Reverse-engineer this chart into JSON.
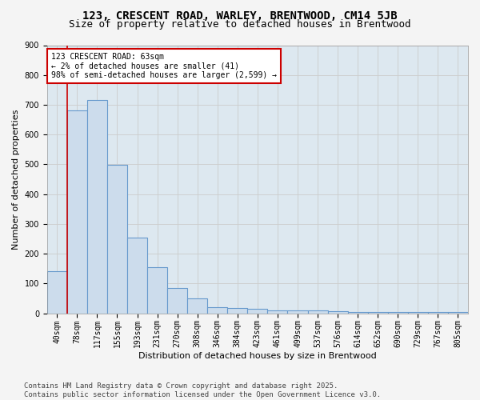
{
  "title": "123, CRESCENT ROAD, WARLEY, BRENTWOOD, CM14 5JB",
  "subtitle": "Size of property relative to detached houses in Brentwood",
  "xlabel": "Distribution of detached houses by size in Brentwood",
  "ylabel": "Number of detached properties",
  "categories": [
    "40sqm",
    "78sqm",
    "117sqm",
    "155sqm",
    "193sqm",
    "231sqm",
    "270sqm",
    "308sqm",
    "346sqm",
    "384sqm",
    "423sqm",
    "461sqm",
    "499sqm",
    "537sqm",
    "576sqm",
    "614sqm",
    "652sqm",
    "690sqm",
    "729sqm",
    "767sqm",
    "805sqm"
  ],
  "values": [
    140,
    680,
    715,
    498,
    255,
    155,
    85,
    50,
    20,
    18,
    15,
    10,
    10,
    10,
    8,
    5,
    5,
    5,
    5,
    3,
    3
  ],
  "bar_color": "#ccdcec",
  "bar_edge_color": "#6699cc",
  "bar_edge_width": 0.8,
  "annotation_box_text": "123 CRESCENT ROAD: 63sqm\n← 2% of detached houses are smaller (41)\n98% of semi-detached houses are larger (2,599) →",
  "annotation_box_color": "#ffffff",
  "annotation_box_edge_color": "#cc0000",
  "ylim": [
    0,
    900
  ],
  "yticks": [
    0,
    100,
    200,
    300,
    400,
    500,
    600,
    700,
    800,
    900
  ],
  "grid_color": "#cccccc",
  "background_color": "#dde8f0",
  "fig_background_color": "#f4f4f4",
  "footer_text": "Contains HM Land Registry data © Crown copyright and database right 2025.\nContains public sector information licensed under the Open Government Licence v3.0.",
  "title_fontsize": 10,
  "subtitle_fontsize": 9,
  "axis_label_fontsize": 8,
  "tick_fontsize": 7,
  "annotation_fontsize": 7,
  "footer_fontsize": 6.5
}
